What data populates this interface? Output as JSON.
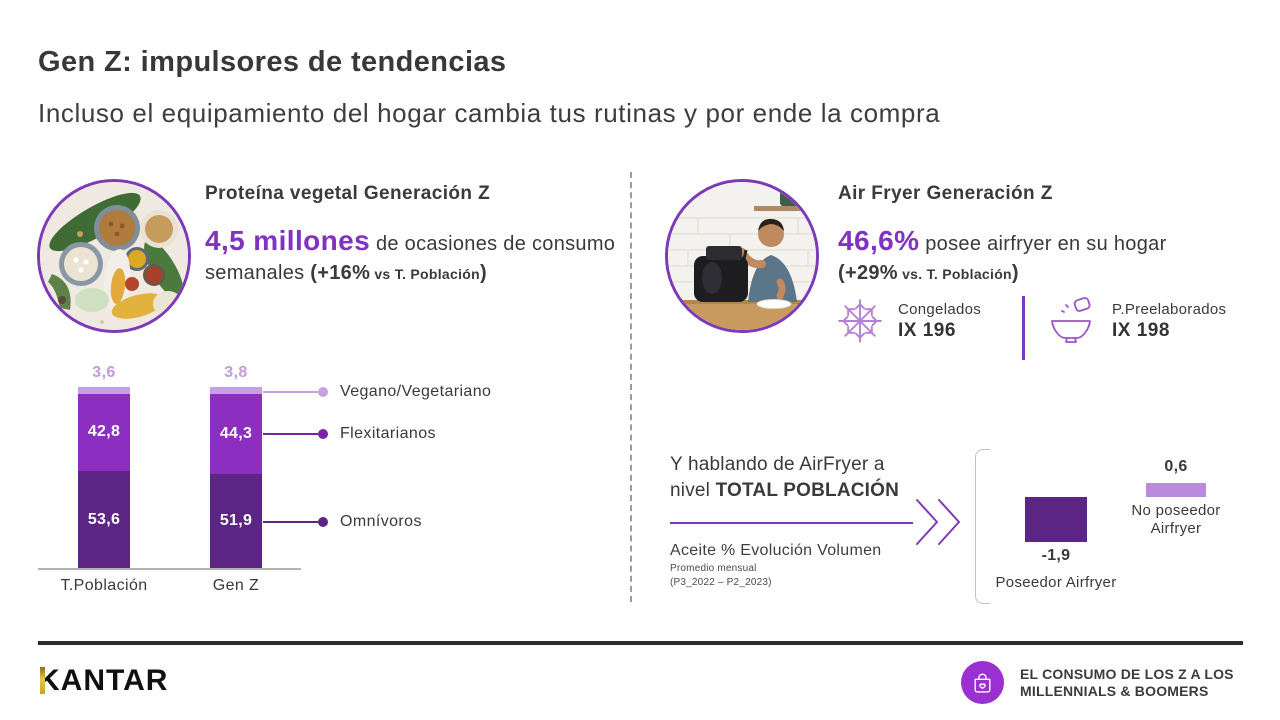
{
  "colors": {
    "accent_purple": "#8033c0",
    "purple_dark": "#5c2483",
    "purple_mid": "#8c2fc0",
    "purple_light": "#c89fe4",
    "purple_border": "#7d3ab8",
    "footer_circle": "#9b30d2",
    "kantar_gold": "#d4a72c"
  },
  "header": {
    "title": "Gen Z: impulsores de tendencias",
    "subtitle": "Incluso el equipamiento del hogar cambia tus rutinas y por ende la compra"
  },
  "left_panel": {
    "heading": "Proteína vegetal Generación Z",
    "stat_big": "4,5 millones",
    "stat_rest": " de ocasiones de consumo",
    "stat_line2_pre": "semanales ",
    "stat_delta": "(+16%",
    "stat_vs": " vs T. Población",
    "stat_close": ")"
  },
  "right_panel": {
    "heading": "Air Fryer Generación Z",
    "stat_big": "46,6%",
    "stat_rest": " posee airfryer en su hogar",
    "stat_delta": "(+29%",
    "stat_vs": " vs. T. Población",
    "stat_close": ")",
    "badges": [
      {
        "icon": "snowflake-icon",
        "label": "Congelados",
        "index": "IX 196"
      },
      {
        "icon": "bowl-icon",
        "label": "P.Preelaborados",
        "index": "IX 198"
      }
    ]
  },
  "protein_chart": {
    "bars": [
      {
        "x_label": "T.Población",
        "top_label": "3,6",
        "mid_label": "42,8",
        "bottom_label": "53,6"
      },
      {
        "x_label": "Gen Z",
        "top_label": "3,8",
        "mid_label": "44,3",
        "bottom_label": "51,9"
      }
    ],
    "legend": [
      {
        "label": "Vegano/Vegetariano",
        "color": "#c9a0e2"
      },
      {
        "label": "Flexitarianos",
        "color": "#7b22a8"
      },
      {
        "label": "Omnívoros",
        "color": "#5c2483"
      }
    ]
  },
  "airfryer_block": {
    "line1": "Y hablando de AirFryer a",
    "line2_pre": "nivel ",
    "line2_bold": "TOTAL POBLACIÓN",
    "metric_title": "Aceite % Evolución Volumen",
    "metric_sub1": "Promedio mensual",
    "metric_sub2": "(P3_2022 – P2_2023)",
    "mini_chart": {
      "neg_value": "-1,9",
      "neg_label": "Poseedor Airfryer",
      "pos_value": "0,6",
      "pos_label_line1": "No poseedor",
      "pos_label_line2": "Airfryer"
    }
  },
  "footer": {
    "logo": "KANTAR",
    "badge_icon": "shopping-bag-icon",
    "campaign_line1": "EL CONSUMO DE LOS Z A LOS",
    "campaign_line2": "MILLENNIALS & BOOMERS"
  },
  "chart_data": [
    {
      "type": "bar",
      "subtype": "stacked",
      "title": "Proteína vegetal Generación Z — reparto por tipo de dieta (%)",
      "categories": [
        "T.Población",
        "Gen Z"
      ],
      "series": [
        {
          "name": "Omnívoros",
          "color": "#5c2483",
          "values": [
            53.6,
            51.9
          ]
        },
        {
          "name": "Flexitarianos",
          "color": "#8c2fc0",
          "values": [
            42.8,
            44.3
          ]
        },
        {
          "name": "Vegano/Vegetariano",
          "color": "#c89fe4",
          "values": [
            3.6,
            3.8
          ]
        }
      ],
      "ylim": [
        0,
        100
      ],
      "legend_position": "right",
      "value_labels": true,
      "grid": false
    },
    {
      "type": "bar",
      "title": "Aceite % Evolución Volumen — Promedio mensual (P3_2022 – P2_2023)",
      "categories": [
        "Poseedor Airfryer",
        "No poseedor Airfryer"
      ],
      "values": [
        -1.9,
        0.6
      ],
      "colors": [
        "#5c2483",
        "#b98ade"
      ],
      "baseline": 0,
      "grid": false
    }
  ]
}
